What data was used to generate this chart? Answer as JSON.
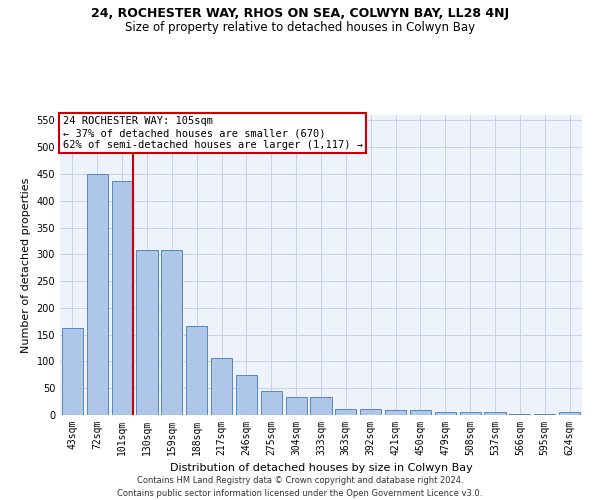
{
  "title": "24, ROCHESTER WAY, RHOS ON SEA, COLWYN BAY, LL28 4NJ",
  "subtitle": "Size of property relative to detached houses in Colwyn Bay",
  "xlabel": "Distribution of detached houses by size in Colwyn Bay",
  "ylabel": "Number of detached properties",
  "categories": [
    "43sqm",
    "72sqm",
    "101sqm",
    "130sqm",
    "159sqm",
    "188sqm",
    "217sqm",
    "246sqm",
    "275sqm",
    "304sqm",
    "333sqm",
    "363sqm",
    "392sqm",
    "421sqm",
    "450sqm",
    "479sqm",
    "508sqm",
    "537sqm",
    "566sqm",
    "595sqm",
    "624sqm"
  ],
  "values": [
    163,
    450,
    437,
    308,
    308,
    167,
    106,
    75,
    45,
    33,
    33,
    11,
    11,
    9,
    9,
    5,
    5,
    5,
    2,
    2,
    5
  ],
  "bar_color": "#aec6e8",
  "bar_edge_color": "#5588bb",
  "vline_x_index": 2,
  "vline_color": "#cc0000",
  "annotation_text": "24 ROCHESTER WAY: 105sqm\n← 37% of detached houses are smaller (670)\n62% of semi-detached houses are larger (1,117) →",
  "annotation_box_color": "#ffffff",
  "annotation_box_edge": "#cc0000",
  "footer_line1": "Contains HM Land Registry data © Crown copyright and database right 2024.",
  "footer_line2": "Contains public sector information licensed under the Open Government Licence v3.0.",
  "ylim": [
    0,
    560
  ],
  "bg_color": "#eef2fb",
  "grid_color": "#c8d0e8",
  "title_fontsize": 9,
  "subtitle_fontsize": 8.5,
  "xlabel_fontsize": 8,
  "ylabel_fontsize": 8,
  "tick_fontsize": 7,
  "annot_fontsize": 7.5,
  "footer_fontsize": 6
}
